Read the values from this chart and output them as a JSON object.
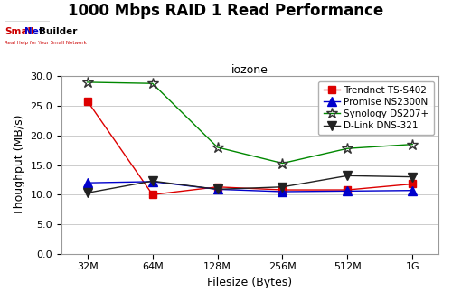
{
  "title": "1000 Mbps RAID 1 Read Performance",
  "subtitle": "iozone",
  "xlabel": "Filesize (Bytes)",
  "ylabel": "Thoughput (MB/s)",
  "x_labels": [
    "32M",
    "64M",
    "128M",
    "256M",
    "512M",
    "1G"
  ],
  "x_positions": [
    0,
    1,
    2,
    3,
    4,
    5
  ],
  "ylim": [
    0.0,
    30.0
  ],
  "yticks": [
    0.0,
    5.0,
    10.0,
    15.0,
    20.0,
    25.0,
    30.0
  ],
  "series": [
    {
      "label": "Trendnet TS-S402",
      "color": "#dd0000",
      "marker": "s",
      "markersize": 6,
      "linewidth": 1.0,
      "markerfacecolor": "#dd0000",
      "values": [
        25.8,
        10.0,
        11.3,
        10.8,
        10.8,
        11.8
      ]
    },
    {
      "label": "Promise NS2300N",
      "color": "#0000cc",
      "marker": "^",
      "markersize": 7,
      "linewidth": 1.0,
      "markerfacecolor": "#0000cc",
      "values": [
        12.0,
        12.2,
        10.9,
        10.5,
        10.6,
        10.7
      ]
    },
    {
      "label": "Synology DS207+",
      "color": "#008800",
      "marker": "*",
      "markersize": 9,
      "linewidth": 1.0,
      "markerfacecolor": "none",
      "markeredgecolor": "#333333",
      "values": [
        29.0,
        28.8,
        18.0,
        15.3,
        17.8,
        18.5
      ]
    },
    {
      "label": "D-Link DNS-321",
      "color": "#222222",
      "marker": "v",
      "markersize": 7,
      "linewidth": 1.0,
      "markerfacecolor": "#222222",
      "values": [
        10.3,
        12.3,
        10.9,
        11.3,
        13.2,
        13.0
      ]
    }
  ],
  "ax_facecolor": "#ffffff",
  "fig_facecolor": "#ffffff",
  "grid_color": "#cccccc",
  "title_fontsize": 12,
  "subtitle_fontsize": 9,
  "axis_label_fontsize": 9,
  "tick_fontsize": 8,
  "legend_fontsize": 7.5,
  "logo_small_color": "#cc0000",
  "logo_net_color": "#0000cc",
  "logo_builder_color": "#000000",
  "logo_tagline": "Real Help for Your Small Network",
  "logo_tagline_color": "#cc0000"
}
